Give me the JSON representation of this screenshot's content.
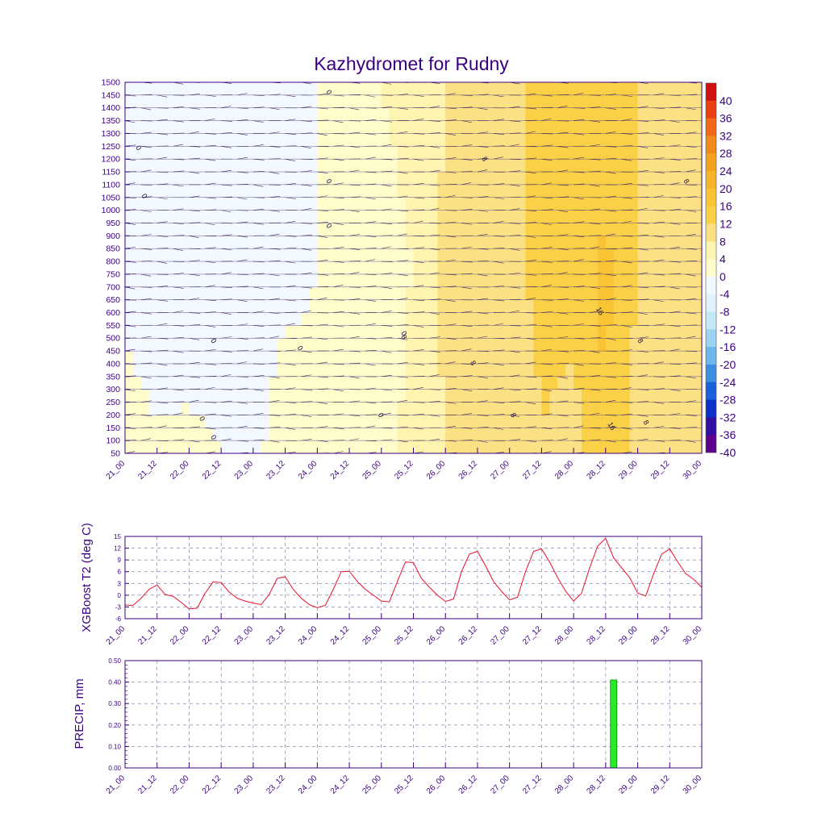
{
  "title": "Kazhydromet for Rudny",
  "colors": {
    "axis": "#3b0080",
    "line": "#e8102a",
    "bar": "#22ee22",
    "bar_outline": "#1b7a1b",
    "wind_barb": "#3a2a5a"
  },
  "x_ticks": [
    "21_00",
    "21_12",
    "22_00",
    "22_12",
    "23_00",
    "23_12",
    "24_00",
    "24_12",
    "25_00",
    "25_12",
    "26_00",
    "26_12",
    "27_00",
    "27_12",
    "28_00",
    "28_12",
    "29_00",
    "29_12",
    "30_00"
  ],
  "chart_data": [
    {
      "type": "heatmap",
      "title": "Kazhydromet for Rudny",
      "x_categories": [
        "21_00",
        "21_12",
        "22_00",
        "22_12",
        "23_00",
        "23_12",
        "24_00",
        "24_12",
        "25_00",
        "25_12",
        "26_00",
        "26_12",
        "27_00",
        "27_12",
        "28_00",
        "28_12",
        "29_00",
        "29_12",
        "30_00"
      ],
      "y_levels": [
        50,
        100,
        150,
        200,
        250,
        300,
        350,
        400,
        450,
        500,
        550,
        600,
        650,
        700,
        750,
        800,
        850,
        900,
        950,
        1000,
        1050,
        1100,
        1150,
        1200,
        1250,
        1300,
        1350,
        1400,
        1450,
        1500
      ],
      "ylim": [
        50,
        1500
      ],
      "colorbar_levels": [
        40,
        36,
        32,
        28,
        24,
        20,
        16,
        12,
        8,
        4,
        0,
        -4,
        -8,
        -12,
        -16,
        -20,
        -24,
        -28,
        -32,
        -36,
        -40
      ],
      "colorbar_colors": [
        "#d01010",
        "#e84010",
        "#f06818",
        "#f08a1c",
        "#f4a21e",
        "#f6b42a",
        "#f8c434",
        "#fad046",
        "#fce084",
        "#fdf4b0",
        "#fffccc",
        "#f2f8ff",
        "#e0f2fc",
        "#c4e8f8",
        "#9ad4f2",
        "#6cb8ea",
        "#3c8ee4",
        "#1a60dc",
        "#0a30c8",
        "#3010a0",
        "#600090"
      ],
      "contour_labels": [
        "0",
        "0",
        "0",
        "0",
        "0",
        "0",
        "0",
        "0",
        "0",
        "0",
        "0",
        "8",
        "8",
        "8",
        "8",
        "8",
        "8",
        "16",
        "16",
        "8"
      ],
      "time_profile": [
        {
          "t": "21_00",
          "surface": 2,
          "mid": -1,
          "top": 0
        },
        {
          "t": "21_12",
          "surface": 1,
          "mid": -4,
          "top": -3
        },
        {
          "t": "22_00",
          "surface": 1,
          "mid": -3,
          "top": -3
        },
        {
          "t": "22_12",
          "surface": 0,
          "mid": -2,
          "top": -2
        },
        {
          "t": "23_00",
          "surface": -1,
          "mid": -2,
          "top": -1
        },
        {
          "t": "23_12",
          "surface": 2,
          "mid": -1,
          "top": -1
        },
        {
          "t": "24_00",
          "surface": 1,
          "mid": 0,
          "top": 0
        },
        {
          "t": "24_12",
          "surface": 3,
          "mid": 2,
          "top": 2
        },
        {
          "t": "25_00",
          "surface": 1,
          "mid": 3,
          "top": 4
        },
        {
          "t": "25_12",
          "surface": 6,
          "mid": 4,
          "top": 5
        },
        {
          "t": "26_00",
          "surface": 8,
          "mid": 9,
          "top": 8
        },
        {
          "t": "26_12",
          "surface": 10,
          "mid": 11,
          "top": 10
        },
        {
          "t": "27_00",
          "surface": 8,
          "mid": 11,
          "top": 11
        },
        {
          "t": "27_12",
          "surface": 12,
          "mid": 13,
          "top": 13
        },
        {
          "t": "28_00",
          "surface": 10,
          "mid": 14,
          "top": 14
        },
        {
          "t": "28_12",
          "surface": 16,
          "mid": 17,
          "top": 12
        },
        {
          "t": "29_00",
          "surface": 10,
          "mid": 12,
          "top": 12
        },
        {
          "t": "29_12",
          "surface": 12,
          "mid": 11,
          "top": 10
        },
        {
          "t": "30_00",
          "surface": 10,
          "mid": 8,
          "top": 8
        }
      ]
    },
    {
      "type": "line",
      "ylabel": "XGBoost T2 (deg C)",
      "ylim": [
        -6,
        15
      ],
      "y_ticks": [
        -6,
        -3,
        0,
        3,
        6,
        9,
        12,
        15
      ],
      "x": [
        0,
        1,
        2,
        3,
        4,
        5,
        6,
        7,
        8,
        9,
        10,
        11,
        12,
        13,
        14,
        15,
        16,
        17,
        18,
        19,
        20,
        21,
        22,
        23,
        24,
        25,
        26,
        27,
        28,
        29,
        30,
        31,
        32,
        33,
        34,
        35,
        36,
        37,
        38,
        39,
        40,
        41,
        42,
        43,
        44,
        45,
        46,
        47,
        48,
        49,
        50,
        51,
        52,
        53,
        54,
        55,
        56,
        57,
        58,
        59,
        60,
        61,
        62,
        63,
        64,
        65,
        66,
        67,
        68,
        69,
        70,
        71,
        72
      ],
      "values": [
        -2.5,
        -2.6,
        -0.8,
        1.5,
        2.6,
        0.2,
        -0.3,
        -1.8,
        -3.5,
        -3.3,
        0.5,
        3.4,
        3.2,
        0.8,
        -0.8,
        -1.5,
        -2.0,
        -2.4,
        0.2,
        4.3,
        4.7,
        1.5,
        -0.8,
        -2.4,
        -3.2,
        -2.6,
        1.5,
        6.0,
        6.1,
        3.5,
        1.5,
        0.0,
        -1.5,
        -1.7,
        3.5,
        8.5,
        8.3,
        4.3,
        2.0,
        0.0,
        -1.6,
        -1.0,
        6.0,
        10.5,
        11.2,
        7.5,
        3.5,
        1.0,
        -1.2,
        -0.5,
        6.0,
        11.2,
        11.8,
        8.5,
        4.5,
        1.0,
        -1.5,
        0.5,
        7.0,
        12.5,
        14.5,
        9.5,
        7.0,
        4.5,
        0.5,
        -0.2,
        5.5,
        10.5,
        11.8,
        8.5,
        5.5,
        4.0,
        2.0
      ]
    },
    {
      "type": "bar",
      "ylabel": "PRECIP, mm",
      "ylim": [
        0,
        0.5
      ],
      "y_ticks": [
        "0.00",
        "0.10",
        "0.20",
        "0.30",
        "0.40",
        "0.50"
      ],
      "x": [
        61
      ],
      "values": [
        0.41
      ]
    }
  ]
}
